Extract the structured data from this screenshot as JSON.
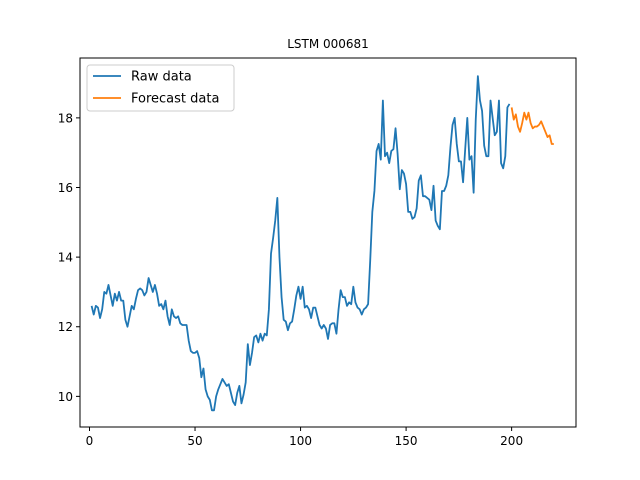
{
  "chart_data": {
    "type": "line",
    "title": "LSTM 000681",
    "xlabel": "",
    "ylabel": "",
    "xlim": [
      -4.5,
      230.5
    ],
    "ylim": [
      9.12,
      19.72
    ],
    "x_ticks": [
      0,
      50,
      100,
      150,
      200
    ],
    "y_ticks": [
      10,
      12,
      14,
      16,
      18
    ],
    "grid": false,
    "legend_position": "upper-left",
    "series": [
      {
        "name": "Raw data",
        "color": "#1f77b4",
        "x_start": 1,
        "values": [
          12.6,
          12.35,
          12.6,
          12.55,
          12.25,
          12.5,
          13.0,
          12.95,
          13.2,
          12.9,
          12.6,
          12.95,
          12.75,
          13.0,
          12.75,
          12.75,
          12.2,
          12.0,
          12.3,
          12.6,
          12.5,
          12.8,
          13.05,
          13.1,
          13.05,
          12.9,
          13.0,
          13.4,
          13.2,
          13.0,
          13.2,
          12.95,
          12.6,
          12.65,
          12.5,
          12.75,
          12.3,
          12.05,
          12.5,
          12.3,
          12.25,
          12.3,
          12.1,
          12.05,
          12.05,
          12.05,
          11.6,
          11.3,
          11.25,
          11.25,
          11.3,
          11.1,
          10.55,
          10.8,
          10.2,
          10.0,
          9.9,
          9.6,
          9.6,
          10.0,
          10.2,
          10.35,
          10.5,
          10.4,
          10.3,
          10.35,
          10.1,
          9.85,
          9.75,
          10.1,
          10.3,
          9.8,
          10.05,
          10.4,
          11.5,
          10.9,
          11.25,
          11.7,
          11.75,
          11.55,
          11.8,
          11.6,
          11.8,
          11.75,
          12.5,
          14.1,
          14.55,
          15.05,
          15.7,
          14.0,
          12.85,
          12.2,
          12.15,
          11.9,
          12.1,
          12.15,
          12.5,
          12.9,
          13.15,
          12.8,
          13.15,
          12.55,
          12.6,
          12.5,
          12.25,
          12.55,
          12.55,
          12.3,
          12.05,
          11.95,
          12.05,
          11.95,
          11.65,
          12.05,
          12.1,
          12.1,
          11.8,
          12.5,
          13.05,
          12.85,
          12.85,
          12.6,
          12.7,
          12.65,
          13.15,
          12.7,
          12.55,
          12.5,
          12.35,
          12.5,
          12.55,
          12.65,
          13.9,
          15.3,
          15.9,
          17.05,
          17.25,
          16.8,
          18.5,
          16.9,
          17.0,
          16.7,
          17.05,
          17.1,
          17.7,
          16.95,
          15.95,
          16.5,
          16.4,
          16.1,
          15.3,
          15.3,
          15.1,
          15.15,
          15.4,
          16.2,
          16.35,
          15.75,
          15.75,
          15.7,
          15.65,
          15.35,
          16.05,
          15.05,
          14.9,
          14.8,
          15.9,
          15.9,
          16.05,
          16.35,
          17.15,
          17.8,
          18.0,
          17.25,
          16.75,
          16.75,
          16.15,
          17.1,
          18.0,
          16.8,
          16.9,
          15.85,
          17.95,
          19.2,
          18.5,
          18.2,
          17.2,
          16.9,
          16.9,
          18.5,
          18.0,
          17.5,
          17.6,
          18.5,
          16.7,
          16.55,
          16.9,
          18.3,
          18.4
        ]
      },
      {
        "name": "Forecast data",
        "color": "#ff7f0e",
        "x_start": 200,
        "values": [
          18.3,
          17.95,
          18.1,
          17.75,
          17.6,
          17.85,
          18.15,
          17.95,
          18.15,
          17.85,
          17.7,
          17.75,
          17.75,
          17.8,
          17.9,
          17.75,
          17.6,
          17.45,
          17.5,
          17.25,
          17.25
        ]
      }
    ]
  }
}
